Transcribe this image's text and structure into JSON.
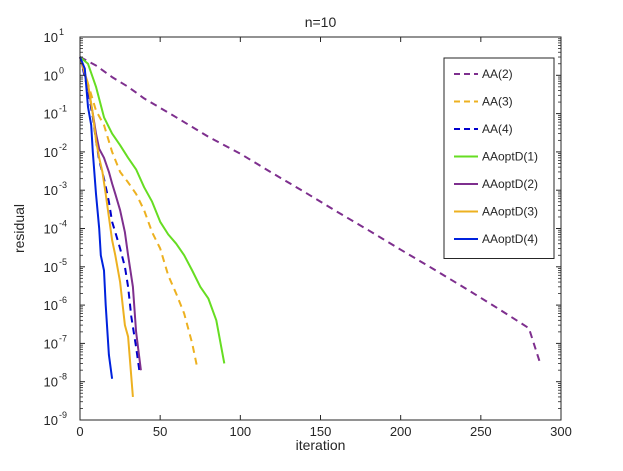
{
  "chart_data": {
    "type": "line",
    "title": "n=10",
    "xlabel": "iteration",
    "ylabel": "residual",
    "xlim": [
      0,
      300
    ],
    "ylim_exponents": [
      -9,
      1
    ],
    "y_scale": "log",
    "grid": false,
    "legend_position": "top-right",
    "x_ticks": [
      "0",
      "50",
      "100",
      "150",
      "200",
      "250",
      "300"
    ],
    "y_tick_exponents": [
      "1",
      "0",
      "-1",
      "-2",
      "-3",
      "-4",
      "-5",
      "-6",
      "-7",
      "-8",
      "-9"
    ],
    "y_tick_base": "10",
    "series": [
      {
        "name": "AA(2)",
        "color": "#7E2F8E",
        "dash": "dashed",
        "x": [
          0,
          10,
          20,
          30,
          40,
          60,
          80,
          100,
          120,
          140,
          160,
          180,
          200,
          220,
          240,
          260,
          280,
          287
        ],
        "y": [
          3,
          1.8,
          0.9,
          0.5,
          0.25,
          0.08,
          0.025,
          0.009,
          0.0028,
          0.0009,
          0.00028,
          9e-05,
          2.8e-05,
          9e-06,
          2.8e-06,
          8.5e-07,
          2.5e-07,
          3e-08
        ]
      },
      {
        "name": "AA(3)",
        "color": "#EDB120",
        "dash": "dashed",
        "x": [
          0,
          5,
          10,
          15,
          20,
          25,
          30,
          35,
          40,
          45,
          50,
          55,
          60,
          65,
          70,
          73
        ],
        "y": [
          3,
          0.6,
          0.12,
          0.05,
          0.01,
          0.003,
          0.0016,
          0.0008,
          0.0003,
          8e-05,
          3e-05,
          6e-06,
          2e-06,
          6e-07,
          1e-07,
          2.5e-08
        ]
      },
      {
        "name": "AA(4)",
        "color": "#0000CC",
        "dash": "dashed",
        "x": [
          0,
          5,
          8,
          10,
          12,
          15,
          18,
          20,
          22,
          25,
          28,
          30,
          32,
          35,
          37
        ],
        "y": [
          3,
          0.4,
          0.08,
          0.02,
          0.006,
          0.002,
          0.0005,
          0.00015,
          8e-05,
          3e-05,
          1e-05,
          3e-06,
          5e-07,
          8e-08,
          2e-08
        ]
      },
      {
        "name": "AAoptD(1)",
        "color": "#66DD22",
        "dash": "solid",
        "x": [
          0,
          5,
          10,
          15,
          20,
          25,
          30,
          35,
          40,
          45,
          50,
          55,
          60,
          65,
          70,
          75,
          80,
          85,
          90
        ],
        "y": [
          3,
          2,
          0.5,
          0.08,
          0.03,
          0.015,
          0.007,
          0.0035,
          0.0012,
          0.0005,
          0.00015,
          7e-05,
          4e-05,
          2e-05,
          8e-06,
          3e-06,
          1.5e-06,
          4e-07,
          3e-08
        ]
      },
      {
        "name": "AAoptD(2)",
        "color": "#7E2F8E",
        "dash": "solid",
        "x": [
          0,
          5,
          8,
          10,
          12,
          15,
          18,
          20,
          22,
          25,
          28,
          30,
          33,
          35,
          38
        ],
        "y": [
          3,
          0.5,
          0.1,
          0.03,
          0.012,
          0.007,
          0.003,
          0.0015,
          0.0008,
          0.0003,
          8e-05,
          2e-05,
          3e-06,
          2e-07,
          2e-08
        ]
      },
      {
        "name": "AAoptD(3)",
        "color": "#EDB120",
        "dash": "solid",
        "x": [
          0,
          5,
          8,
          10,
          12,
          14,
          16,
          18,
          20,
          22,
          25,
          28,
          30,
          33
        ],
        "y": [
          3,
          0.6,
          0.1,
          0.02,
          0.007,
          0.003,
          0.0008,
          0.0002,
          5e-05,
          2e-05,
          4e-06,
          3e-07,
          1.5e-07,
          4e-09
        ]
      },
      {
        "name": "AAoptD(4)",
        "color": "#0022DD",
        "dash": "solid",
        "x": [
          0,
          3,
          5,
          7,
          8,
          10,
          12,
          13,
          15,
          16,
          18,
          20
        ],
        "y": [
          3,
          1.5,
          0.15,
          0.05,
          0.01,
          0.0008,
          0.0001,
          2e-05,
          8e-06,
          1e-06,
          5e-08,
          1.2e-08
        ]
      }
    ]
  }
}
